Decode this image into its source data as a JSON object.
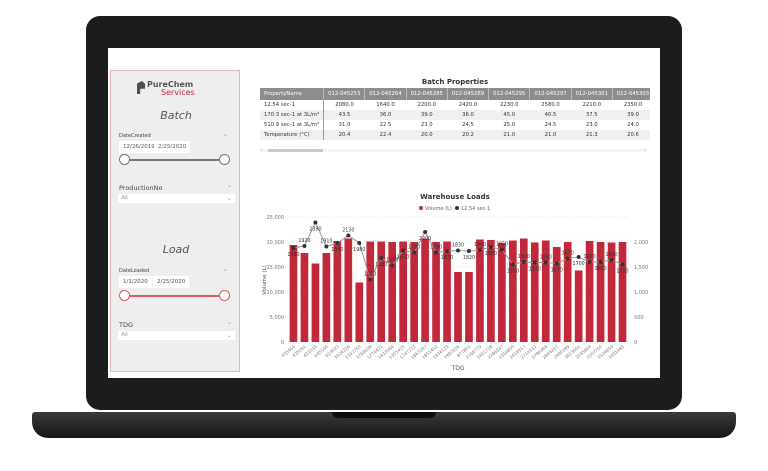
{
  "sidebar": {
    "logo": {
      "name": "PureChem",
      "sub": "Services"
    },
    "batch": {
      "title": "Batch",
      "date_label": "DateCreated",
      "date_from": "12/26/2019",
      "date_to": "2/25/2020",
      "prod_label": "ProductionNo",
      "prod_value": "All"
    },
    "load": {
      "title": "Load",
      "date_label": "DateLoaded",
      "date_from": "1/1/2020",
      "date_to": "2/25/2020",
      "tdg_label": "TDG",
      "tdg_value": "All"
    }
  },
  "table": {
    "title": "Batch Properties",
    "headers": [
      "PropertyName",
      "012-045253",
      "012-045264",
      "012-045285",
      "012-045289",
      "012-045295",
      "012-045297",
      "012-045301",
      "012-045303",
      "012-045365",
      "012-0"
    ],
    "rows": [
      [
        "12.54 sec-1",
        "2080.0",
        "1640.0",
        "2200.0",
        "2420.0",
        "2230.0",
        "2580.0",
        "2210.0",
        "2350.0",
        "1460.0",
        "178"
      ],
      [
        "170.3 sec-1 at 3L/m³",
        "43.5",
        "36.0",
        "39.0",
        "36.0",
        "45.0",
        "40.5",
        "37.5",
        "39.0",
        "54.0",
        "5"
      ],
      [
        "510.9 sec-1 at 3L/m³",
        "31.0",
        "22.5",
        "23.0",
        "24.5",
        "25.0",
        "24.5",
        "23.0",
        "24.0",
        "27.0",
        "2"
      ],
      [
        "Temperature (°C)",
        "20.4",
        "22.4",
        "20.0",
        "20.2",
        "21.0",
        "21.0",
        "21.3",
        "20.6",
        "21.0",
        "2"
      ]
    ]
  },
  "chart_data": {
    "type": "bar+line",
    "title": "Warehouse Loads",
    "xlabel": "TDG",
    "ylabel": "Volume (L)",
    "legend": [
      "Volume (L)",
      "12.54 sec-1"
    ],
    "legend_position": "top-center",
    "colors": {
      "bar": "#c1283a",
      "line": "#333333",
      "line_stroke": "#999999"
    },
    "ylim": [
      0,
      25000
    ],
    "y2lim": [
      0,
      2500
    ],
    "yticks": [
      "0",
      "5,000",
      "10,000",
      "15,000",
      "20,000",
      "25,000"
    ],
    "y2ticks": [
      "0",
      "500",
      "1,000",
      "1,500",
      "2,000"
    ],
    "categories": [
      "435464",
      "435091",
      "431035",
      "645546",
      "623622",
      "1024326",
      "1302750",
      "1268038",
      "1274421",
      "1433560",
      "1355425",
      "1747231",
      "1863287",
      "1851402",
      "1934123",
      "1992626",
      "877801",
      "2168779",
      "2451718",
      "2286547",
      "2356805",
      "2418917",
      "2710531",
      "2786366",
      "2844207",
      "2990399",
      "3023601",
      "3145864",
      "3207705",
      "3329850",
      "3451085"
    ],
    "series": [
      {
        "name": "Volume (L)",
        "axis": "left",
        "values": [
          19400,
          17800,
          15700,
          17800,
          20200,
          20700,
          11900,
          20100,
          20100,
          20000,
          20100,
          20000,
          20700,
          20000,
          20100,
          14000,
          14000,
          20500,
          20400,
          19800,
          20300,
          20700,
          19900,
          20300,
          19000,
          20000,
          14300,
          20200,
          20000,
          19900,
          20000
        ]
      },
      {
        "name": "12.54 sec-1",
        "axis": "right",
        "values": [
          1880,
          1920,
          2390,
          1910,
          1980,
          2130,
          1980,
          1250,
          1680,
          1530,
          1830,
          1790,
          2200,
          1790,
          1820,
          1830,
          1820,
          1840,
          1900,
          1850,
          1550,
          1600,
          1590,
          1590,
          1570,
          1670,
          1700,
          1600,
          1600,
          1640,
          1550
        ]
      }
    ]
  }
}
